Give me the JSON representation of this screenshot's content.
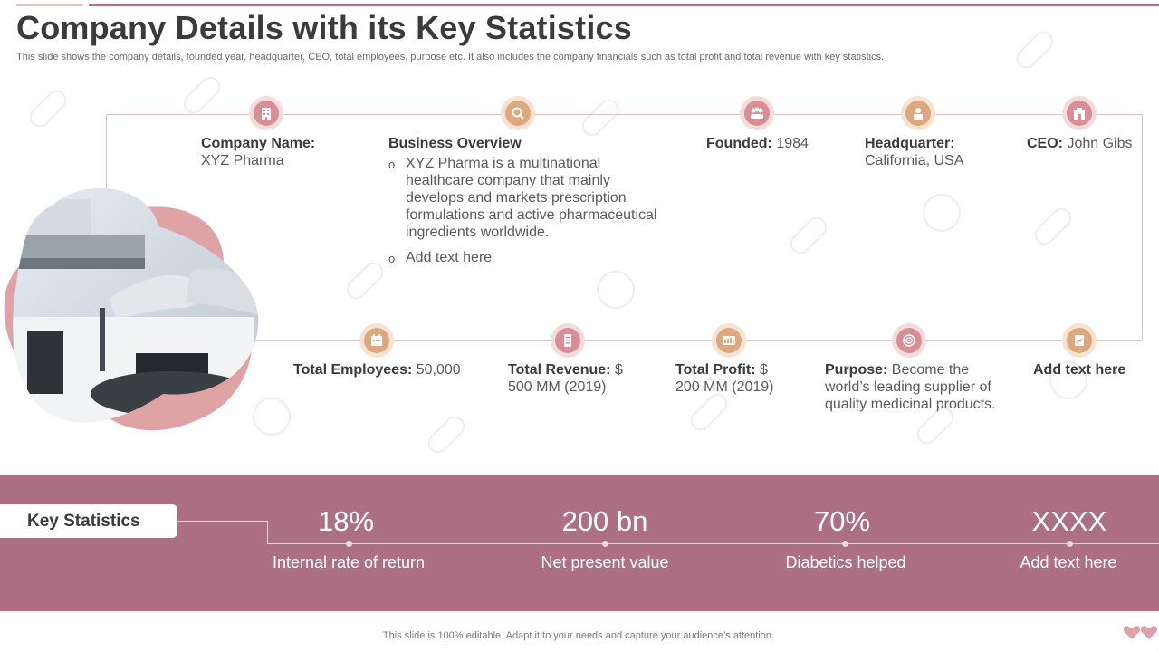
{
  "header": {
    "title": "Company Details with its Key Statistics",
    "subtitle": "This slide shows the company details, founded year, headquarter, CEO, total employees, purpose etc. It also includes the company financials such as total profit and total revenue with key statistics."
  },
  "details_top": {
    "company": {
      "label": "Company Name:",
      "value": "XYZ Pharma",
      "icon": "building-icon"
    },
    "overview": {
      "label": "Business Overview",
      "bullets": [
        "XYZ Pharma is a multinational healthcare company that mainly develops and markets prescription formulations and active pharmaceutical ingredients worldwide.",
        "Add text here"
      ],
      "icon": "search-icon"
    },
    "founded": {
      "label": "Founded:",
      "value": " 1984",
      "icon": "group-icon"
    },
    "headquarter": {
      "label": "Headquarter:",
      "value": "California, USA",
      "icon": "office-person-icon"
    },
    "ceo": {
      "label": "CEO:",
      "value": " John Gibs",
      "icon": "ceo-icon"
    }
  },
  "details_bottom": {
    "employees": {
      "label": "Total Employees:",
      "value": " 50,000",
      "icon": "calendar-icon"
    },
    "revenue": {
      "label": "Total Revenue:",
      "value": " $ 500 MM (2019)",
      "icon": "document-icon"
    },
    "profit": {
      "label": "Total Profit:",
      "value": " $ 200 MM (2019)",
      "icon": "dashboard-icon"
    },
    "purpose": {
      "label": "Purpose:",
      "value": " Become the world’s leading supplier of quality medicinal products.",
      "icon": "target-icon"
    },
    "extra": {
      "label": "Add text here",
      "icon": "report-icon"
    }
  },
  "key_statistics": {
    "heading": "Key Statistics",
    "items": [
      {
        "value": "18%",
        "label": "Internal rate of return"
      },
      {
        "value": "200 bn",
        "label": "Net present value"
      },
      {
        "value": "70%",
        "label": "Diabetics helped"
      },
      {
        "value": "XXXX",
        "label": "Add text here"
      }
    ]
  },
  "footer": {
    "text": "This slide is 100% editable. Adapt it to your needs and capture your audience’s attention."
  },
  "colors": {
    "band": "#ac6f84",
    "pink_icon": "#d98e95",
    "tan_icon": "#dda87f",
    "title": "#3b3b3b"
  }
}
